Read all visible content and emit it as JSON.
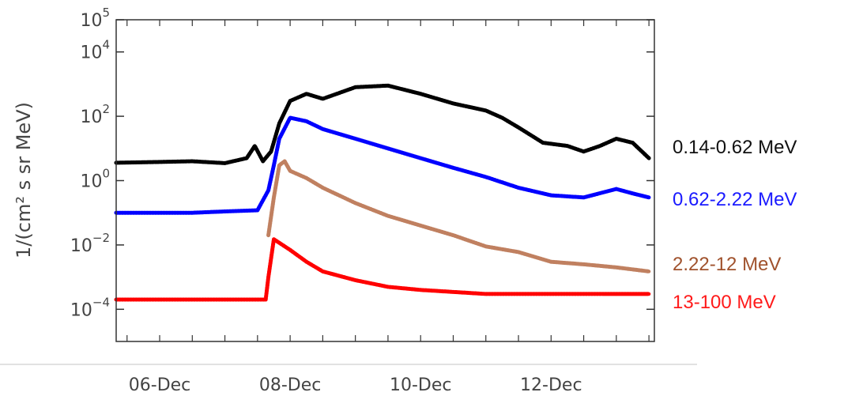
{
  "chart_data": {
    "type": "scatter",
    "ylabel": "1/(cm² s sr MeV)",
    "yscale": "log",
    "ylim": [
      1e-05,
      100000
    ],
    "xlim": [
      "2006-12-05 08:00",
      "2006-12-13 14:00"
    ],
    "x_ticks": [
      "06-Dec",
      "08-Dec",
      "10-Dec",
      "12-Dec"
    ],
    "y_ticks": [
      {
        "value": 0.0001,
        "label": "10",
        "exp": "−4"
      },
      {
        "value": 0.01,
        "label": "10",
        "exp": "−2"
      },
      {
        "value": 1,
        "label": "10",
        "exp": "0"
      },
      {
        "value": 100,
        "label": "10",
        "exp": "2"
      },
      {
        "value": 10000,
        "label": "10",
        "exp": "4"
      },
      {
        "value": 100000,
        "label": "10",
        "exp": "5"
      }
    ],
    "grid": false,
    "legend_position": "right",
    "series": [
      {
        "name": "0.14-0.62 MeV",
        "color": "#000000",
        "points": [
          [
            "2006-12-05 08:00",
            3.6
          ],
          [
            "2006-12-06 00:00",
            3.8
          ],
          [
            "2006-12-06 12:00",
            4
          ],
          [
            "2006-12-07 00:00",
            3.5
          ],
          [
            "2006-12-07 08:00",
            5
          ],
          [
            "2006-12-07 11:00",
            12
          ],
          [
            "2006-12-07 14:00",
            4
          ],
          [
            "2006-12-07 17:00",
            8
          ],
          [
            "2006-12-07 20:00",
            60
          ],
          [
            "2006-12-08 00:00",
            300
          ],
          [
            "2006-12-08 06:00",
            500
          ],
          [
            "2006-12-08 12:00",
            350
          ],
          [
            "2006-12-09 00:00",
            800
          ],
          [
            "2006-12-09 12:00",
            900
          ],
          [
            "2006-12-10 00:00",
            500
          ],
          [
            "2006-12-10 12:00",
            250
          ],
          [
            "2006-12-11 00:00",
            150
          ],
          [
            "2006-12-11 06:00",
            90
          ],
          [
            "2006-12-11 12:00",
            45
          ],
          [
            "2006-12-11 21:00",
            15
          ],
          [
            "2006-12-12 06:00",
            12
          ],
          [
            "2006-12-12 12:00",
            8
          ],
          [
            "2006-12-12 18:00",
            12
          ],
          [
            "2006-12-13 00:00",
            20
          ],
          [
            "2006-12-13 06:00",
            15
          ],
          [
            "2006-12-13 12:00",
            5
          ]
        ]
      },
      {
        "name": "0.62-2.22 MeV",
        "color": "#0000ff",
        "points": [
          [
            "2006-12-05 08:00",
            0.1
          ],
          [
            "2006-12-06 00:00",
            0.1
          ],
          [
            "2006-12-06 12:00",
            0.1
          ],
          [
            "2006-12-07 00:00",
            0.11
          ],
          [
            "2006-12-07 12:00",
            0.12
          ],
          [
            "2006-12-07 16:00",
            0.5
          ],
          [
            "2006-12-07 18:00",
            3
          ],
          [
            "2006-12-07 20:00",
            20
          ],
          [
            "2006-12-08 00:00",
            90
          ],
          [
            "2006-12-08 06:00",
            70
          ],
          [
            "2006-12-08 12:00",
            40
          ],
          [
            "2006-12-09 00:00",
            20
          ],
          [
            "2006-12-09 12:00",
            10
          ],
          [
            "2006-12-10 00:00",
            5
          ],
          [
            "2006-12-10 12:00",
            2.5
          ],
          [
            "2006-12-11 00:00",
            1.3
          ],
          [
            "2006-12-11 12:00",
            0.6
          ],
          [
            "2006-12-12 00:00",
            0.35
          ],
          [
            "2006-12-12 12:00",
            0.3
          ],
          [
            "2006-12-13 00:00",
            0.55
          ],
          [
            "2006-12-13 06:00",
            0.4
          ],
          [
            "2006-12-13 12:00",
            0.3
          ]
        ]
      },
      {
        "name": "2.22-12 MeV",
        "color": "#c08060",
        "points": [
          [
            "2006-12-07 16:00",
            0.02
          ],
          [
            "2006-12-07 18:00",
            0.3
          ],
          [
            "2006-12-07 20:00",
            3
          ],
          [
            "2006-12-07 22:00",
            4
          ],
          [
            "2006-12-08 00:00",
            2
          ],
          [
            "2006-12-08 06:00",
            1.2
          ],
          [
            "2006-12-08 12:00",
            0.6
          ],
          [
            "2006-12-09 00:00",
            0.2
          ],
          [
            "2006-12-09 12:00",
            0.08
          ],
          [
            "2006-12-10 00:00",
            0.04
          ],
          [
            "2006-12-10 12:00",
            0.02
          ],
          [
            "2006-12-11 00:00",
            0.009
          ],
          [
            "2006-12-11 12:00",
            0.006
          ],
          [
            "2006-12-12 00:00",
            0.003
          ],
          [
            "2006-12-12 12:00",
            0.0025
          ],
          [
            "2006-12-13 00:00",
            0.002
          ],
          [
            "2006-12-13 12:00",
            0.0015
          ]
        ]
      },
      {
        "name": "13-100 MeV",
        "color": "#ff0000",
        "points": [
          [
            "2006-12-05 08:00",
            0.0002
          ],
          [
            "2006-12-06 00:00",
            0.0002
          ],
          [
            "2006-12-07 00:00",
            0.0002
          ],
          [
            "2006-12-07 15:00",
            0.0002
          ],
          [
            "2006-12-07 16:00",
            0.001
          ],
          [
            "2006-12-07 18:00",
            0.015
          ],
          [
            "2006-12-08 00:00",
            0.007
          ],
          [
            "2006-12-08 06:00",
            0.003
          ],
          [
            "2006-12-08 12:00",
            0.0015
          ],
          [
            "2006-12-09 00:00",
            0.0008
          ],
          [
            "2006-12-09 12:00",
            0.0005
          ],
          [
            "2006-12-10 00:00",
            0.0004
          ],
          [
            "2006-12-11 00:00",
            0.0003
          ],
          [
            "2006-12-12 00:00",
            0.0003
          ],
          [
            "2006-12-13 00:00",
            0.0003
          ],
          [
            "2006-12-13 12:00",
            0.0003
          ]
        ]
      }
    ]
  }
}
